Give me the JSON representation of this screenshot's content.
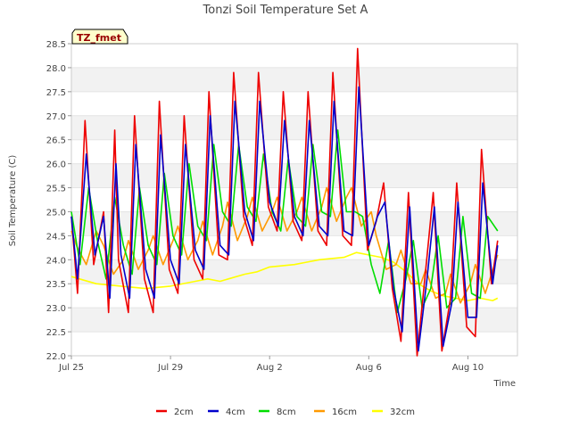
{
  "chart_data": {
    "type": "line",
    "title": "Tonzi Soil Temperature Set A",
    "xlabel": "Time",
    "ylabel": "Soil Temperature (C)",
    "ylim": [
      22.0,
      28.5
    ],
    "yticks": [
      "22.0",
      "22.5",
      "23.0",
      "23.5",
      "24.0",
      "24.5",
      "25.0",
      "25.5",
      "26.0",
      "26.5",
      "27.0",
      "27.5",
      "28.0",
      "28.5"
    ],
    "xlim": [
      0,
      18
    ],
    "xtick_positions": [
      0,
      4,
      8,
      12,
      16
    ],
    "xticks": [
      "Jul 25",
      "Jul 29",
      "Aug 2",
      "Aug 6",
      "Aug 10"
    ],
    "grid": "horizontal bands",
    "legend_position": "bottom",
    "annotation": "TZ_fmet",
    "series": [
      {
        "name": "2cm",
        "color": "#ee0000",
        "x": [
          0.0,
          0.25,
          0.55,
          0.9,
          1.3,
          1.5,
          1.75,
          1.9,
          2.3,
          2.55,
          2.95,
          3.3,
          3.55,
          3.95,
          4.3,
          4.55,
          4.95,
          5.3,
          5.55,
          5.95,
          6.3,
          6.55,
          6.95,
          7.3,
          7.55,
          7.95,
          8.3,
          8.55,
          8.95,
          9.3,
          9.55,
          9.95,
          10.3,
          10.55,
          10.95,
          11.3,
          11.55,
          11.95,
          12.3,
          12.6,
          12.95,
          13.3,
          13.6,
          13.95,
          14.3,
          14.6,
          14.95,
          15.3,
          15.55,
          15.95,
          16.3,
          16.55,
          16.95,
          17.2
        ],
        "y": [
          24.9,
          23.3,
          26.9,
          23.9,
          25.0,
          22.9,
          26.7,
          24.0,
          22.9,
          27.0,
          23.6,
          22.9,
          27.3,
          23.8,
          23.3,
          27.0,
          24.0,
          23.6,
          27.5,
          24.1,
          24.0,
          27.9,
          24.9,
          24.3,
          27.9,
          25.1,
          24.6,
          27.5,
          24.8,
          24.4,
          27.5,
          24.6,
          24.3,
          27.9,
          24.5,
          24.3,
          28.4,
          24.2,
          24.8,
          25.6,
          23.4,
          22.3,
          25.4,
          22.0,
          23.8,
          25.4,
          22.1,
          23.2,
          25.6,
          22.6,
          22.4,
          26.3,
          23.5,
          24.4
        ]
      },
      {
        "name": "4cm",
        "color": "#0000cc",
        "x": [
          0.0,
          0.25,
          0.6,
          0.95,
          1.3,
          1.55,
          1.8,
          2.0,
          2.35,
          2.6,
          3.0,
          3.35,
          3.6,
          4.0,
          4.35,
          4.6,
          5.0,
          5.35,
          5.6,
          6.0,
          6.35,
          6.6,
          7.0,
          7.35,
          7.6,
          8.0,
          8.35,
          8.6,
          9.0,
          9.35,
          9.6,
          10.0,
          10.35,
          10.6,
          11.0,
          11.35,
          11.6,
          12.0,
          12.35,
          12.65,
          13.0,
          13.35,
          13.65,
          14.0,
          14.35,
          14.65,
          15.0,
          15.35,
          15.6,
          16.0,
          16.35,
          16.6,
          17.0,
          17.2
        ],
        "y": [
          24.9,
          23.6,
          26.2,
          24.1,
          24.9,
          23.2,
          26.0,
          24.1,
          23.2,
          26.4,
          23.8,
          23.2,
          26.6,
          24.0,
          23.5,
          26.4,
          24.2,
          23.8,
          27.0,
          24.3,
          24.1,
          27.3,
          25.0,
          24.4,
          27.3,
          25.2,
          24.7,
          26.9,
          24.9,
          24.5,
          26.9,
          24.7,
          24.5,
          27.3,
          24.6,
          24.5,
          27.6,
          24.3,
          24.9,
          25.2,
          23.4,
          22.5,
          25.1,
          22.1,
          23.6,
          25.1,
          22.2,
          23.1,
          25.2,
          22.8,
          22.8,
          25.6,
          23.5,
          24.3
        ]
      },
      {
        "name": "8cm",
        "color": "#00dd00",
        "x": [
          0.0,
          0.35,
          0.7,
          1.05,
          1.4,
          1.75,
          2.1,
          2.45,
          2.75,
          3.1,
          3.45,
          3.75,
          4.1,
          4.45,
          4.75,
          5.1,
          5.45,
          5.75,
          6.1,
          6.45,
          6.75,
          7.1,
          7.45,
          7.75,
          8.1,
          8.45,
          8.75,
          9.1,
          9.45,
          9.75,
          10.1,
          10.45,
          10.75,
          11.1,
          11.45,
          11.75,
          12.1,
          12.45,
          12.8,
          13.15,
          13.5,
          13.8,
          14.15,
          14.5,
          14.8,
          15.15,
          15.5,
          15.8,
          16.15,
          16.5,
          16.8,
          17.2
        ],
        "y": [
          25.0,
          23.9,
          25.5,
          24.4,
          23.6,
          25.3,
          24.3,
          23.7,
          25.5,
          24.3,
          23.9,
          25.8,
          24.5,
          24.1,
          26.0,
          24.7,
          24.4,
          26.4,
          25.0,
          24.7,
          26.4,
          25.1,
          24.8,
          26.2,
          25.0,
          24.6,
          26.1,
          24.9,
          24.7,
          26.4,
          25.0,
          24.9,
          26.7,
          25.0,
          25.0,
          24.9,
          23.9,
          23.3,
          24.4,
          22.9,
          23.6,
          24.4,
          23.0,
          23.4,
          24.5,
          23.0,
          23.2,
          24.9,
          23.3,
          23.2,
          24.9,
          24.6
        ]
      },
      {
        "name": "16cm",
        "color": "#ff9900",
        "x": [
          0.0,
          0.2,
          0.6,
          1.0,
          1.3,
          1.7,
          2.1,
          2.3,
          2.7,
          3.1,
          3.3,
          3.7,
          4.1,
          4.3,
          4.7,
          5.1,
          5.3,
          5.7,
          6.1,
          6.3,
          6.7,
          7.1,
          7.3,
          7.7,
          8.1,
          8.3,
          8.7,
          9.1,
          9.3,
          9.7,
          10.1,
          10.3,
          10.7,
          11.1,
          11.3,
          11.7,
          12.1,
          12.3,
          12.7,
          13.1,
          13.3,
          13.7,
          14.1,
          14.3,
          14.7,
          15.1,
          15.3,
          15.7,
          16.1,
          16.3,
          16.7,
          17.2
        ],
        "y": [
          24.6,
          24.3,
          23.9,
          24.6,
          24.3,
          23.7,
          24.0,
          24.4,
          23.8,
          24.2,
          24.5,
          23.9,
          24.4,
          24.7,
          24.0,
          24.4,
          24.8,
          24.1,
          24.7,
          25.2,
          24.4,
          24.9,
          25.3,
          24.6,
          25.0,
          25.3,
          24.6,
          25.0,
          25.3,
          24.6,
          25.1,
          25.5,
          24.8,
          25.3,
          25.5,
          24.7,
          25.0,
          24.5,
          23.8,
          23.9,
          24.2,
          23.5,
          23.5,
          23.8,
          23.2,
          23.3,
          23.7,
          23.1,
          23.5,
          23.9,
          23.3,
          24.1
        ]
      },
      {
        "name": "32cm",
        "color": "#ffff00",
        "x": [
          0.0,
          1.0,
          2.0,
          3.0,
          4.0,
          5.0,
          5.5,
          6.0,
          7.0,
          7.5,
          8.0,
          9.0,
          9.5,
          10.0,
          11.0,
          11.5,
          12.0,
          12.5,
          13.0,
          13.5,
          14.0,
          14.5,
          15.0,
          15.5,
          16.0,
          16.5,
          17.0,
          17.2
        ],
        "y": [
          23.65,
          23.5,
          23.45,
          23.4,
          23.45,
          23.55,
          23.6,
          23.55,
          23.7,
          23.75,
          23.85,
          23.9,
          23.95,
          24.0,
          24.05,
          24.15,
          24.1,
          24.05,
          23.95,
          23.75,
          23.5,
          23.35,
          23.25,
          23.2,
          23.15,
          23.2,
          23.15,
          23.2
        ]
      }
    ]
  }
}
